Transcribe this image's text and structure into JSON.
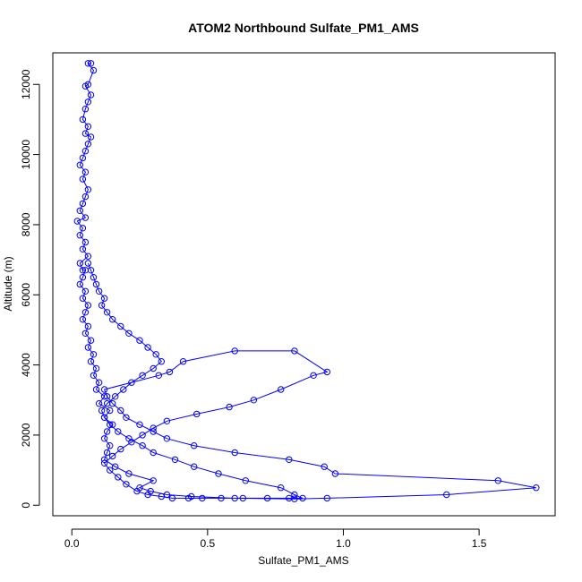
{
  "chart_data": {
    "type": "line",
    "title": "ATOM2 Northbound Sulfate_PM1_AMS",
    "xlabel": "Sulfate_PM1_AMS",
    "ylabel": "Altitude (m)",
    "xlim": [
      -0.07,
      1.78
    ],
    "ylim": [
      -300,
      12900
    ],
    "xticks": [
      0.0,
      0.5,
      1.0,
      1.5
    ],
    "xtick_labels": [
      "0.0",
      "0.5",
      "1.0",
      "1.5"
    ],
    "yticks": [
      0,
      2000,
      4000,
      6000,
      8000,
      10000,
      12000
    ],
    "ytick_labels": [
      "0",
      "2000",
      "4000",
      "6000",
      "8000",
      "10000",
      "12000"
    ],
    "grid": false,
    "marker": "open-circle",
    "series": [
      {
        "color": "#0000ff",
        "x": [
          0.07,
          0.06,
          0.08,
          0.06,
          0.05,
          0.07,
          0.06,
          0.05,
          0.04,
          0.06,
          0.05,
          0.07,
          0.06,
          0.05,
          0.04,
          0.03,
          0.05,
          0.04,
          0.06,
          0.05,
          0.04,
          0.03,
          0.05,
          0.02,
          0.04,
          0.03,
          0.05,
          0.04,
          0.06,
          0.03,
          0.04,
          0.05,
          0.04,
          0.03,
          0.05,
          0.04,
          0.06,
          0.05,
          0.04,
          0.06,
          0.05,
          0.07,
          0.06,
          0.08,
          0.07,
          0.09,
          0.08,
          0.1,
          0.09,
          0.12,
          0.1,
          0.14,
          0.12,
          0.15,
          0.13,
          0.12,
          0.14,
          0.13,
          0.12,
          0.16,
          0.21,
          0.3,
          0.25,
          0.29,
          0.35,
          0.44,
          0.6,
          0.82,
          0.94,
          1.38,
          1.71,
          1.57,
          0.97,
          0.93,
          0.8,
          0.6,
          0.45,
          0.35,
          0.3,
          0.25,
          0.2,
          0.18,
          0.15,
          0.13,
          0.12,
          0.32,
          0.36,
          0.41,
          0.6,
          0.82,
          0.94,
          0.89,
          0.77,
          0.67,
          0.58,
          0.46,
          0.35,
          0.3,
          0.26,
          0.22,
          0.18,
          0.15,
          0.12,
          0.14,
          0.17,
          0.2,
          0.24,
          0.28,
          0.33,
          0.37,
          0.43,
          0.48,
          0.55,
          0.63,
          0.72,
          0.8,
          0.85,
          0.82,
          0.77,
          0.64,
          0.54,
          0.45,
          0.38,
          0.3,
          0.26,
          0.21,
          0.17,
          0.14,
          0.12,
          0.11,
          0.13,
          0.16,
          0.19,
          0.22,
          0.26,
          0.3,
          0.33,
          0.31,
          0.28,
          0.25,
          0.21,
          0.18,
          0.15,
          0.13,
          0.11,
          0.12,
          0.1,
          0.09,
          0.08,
          0.07,
          0.06
        ],
        "y": [
          12600,
          12600,
          12400,
          12000,
          11950,
          11700,
          11500,
          11300,
          11000,
          10800,
          10600,
          10500,
          10300,
          10100,
          9900,
          9700,
          9500,
          9300,
          9000,
          8800,
          8600,
          8400,
          8200,
          8100,
          7900,
          7700,
          7500,
          7300,
          7100,
          6900,
          6700,
          6700,
          6500,
          6300,
          6100,
          5900,
          5700,
          5500,
          5300,
          5100,
          4900,
          4700,
          4500,
          4300,
          4100,
          3900,
          3700,
          3500,
          3300,
          3100,
          2900,
          2700,
          2500,
          2300,
          2100,
          1900,
          1700,
          1500,
          1300,
          1100,
          900,
          700,
          500,
          400,
          300,
          250,
          200,
          180,
          200,
          300,
          500,
          700,
          900,
          1100,
          1300,
          1500,
          1700,
          1900,
          2100,
          2300,
          2500,
          2700,
          2900,
          3100,
          3300,
          3700,
          3800,
          4100,
          4400,
          4400,
          3800,
          3700,
          3300,
          3000,
          2800,
          2600,
          2400,
          2200,
          2000,
          1800,
          1600,
          1400,
          1200,
          1000,
          800,
          600,
          400,
          300,
          250,
          200,
          200,
          200,
          200,
          200,
          200,
          200,
          200,
          300,
          500,
          700,
          900,
          1100,
          1300,
          1500,
          1700,
          1900,
          2100,
          2300,
          2500,
          2700,
          2900,
          3100,
          3300,
          3500,
          3700,
          3900,
          4100,
          4300,
          4500,
          4700,
          4900,
          5100,
          5300,
          5500,
          5700,
          5900,
          6100,
          6300,
          6500,
          6700,
          6900
        ]
      }
    ]
  }
}
